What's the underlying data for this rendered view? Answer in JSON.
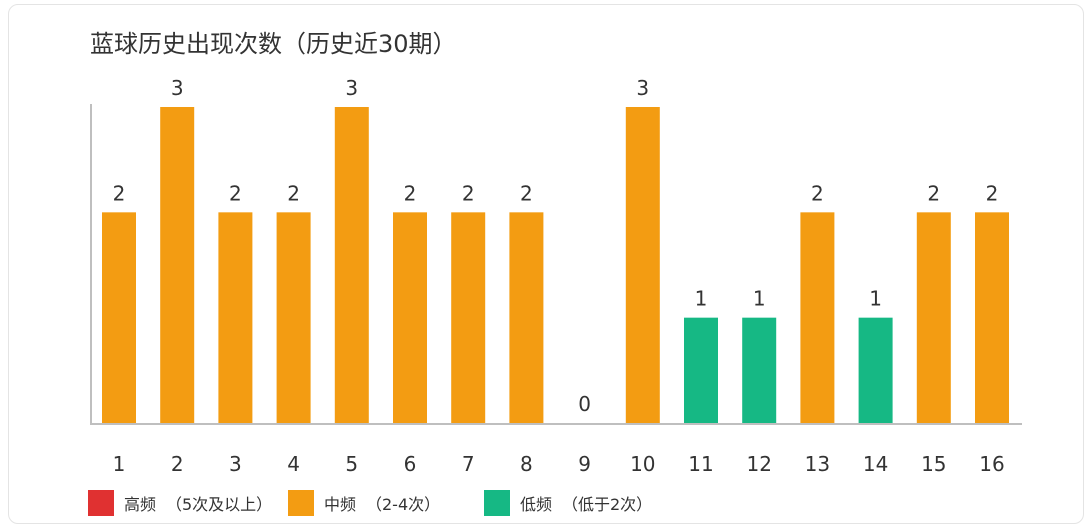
{
  "chart_data": {
    "type": "bar",
    "title": "蓝球历史出现次数（历史近30期）",
    "categories": [
      "1",
      "2",
      "3",
      "4",
      "5",
      "6",
      "7",
      "8",
      "9",
      "10",
      "11",
      "12",
      "13",
      "14",
      "15",
      "16"
    ],
    "values": [
      2,
      3,
      2,
      2,
      3,
      2,
      2,
      2,
      0,
      3,
      1,
      1,
      2,
      1,
      2,
      2
    ],
    "ylim": [
      0,
      3
    ],
    "grid": false,
    "legend_position": "bottom-left",
    "legend": [
      {
        "label": "高频",
        "note": "（5次及以上）",
        "color": "#e03131"
      },
      {
        "label": "中频",
        "note": "（2-4次）",
        "color": "#f39c12"
      },
      {
        "label": "低频",
        "note": "（低于2次）",
        "color": "#16b884"
      }
    ]
  }
}
